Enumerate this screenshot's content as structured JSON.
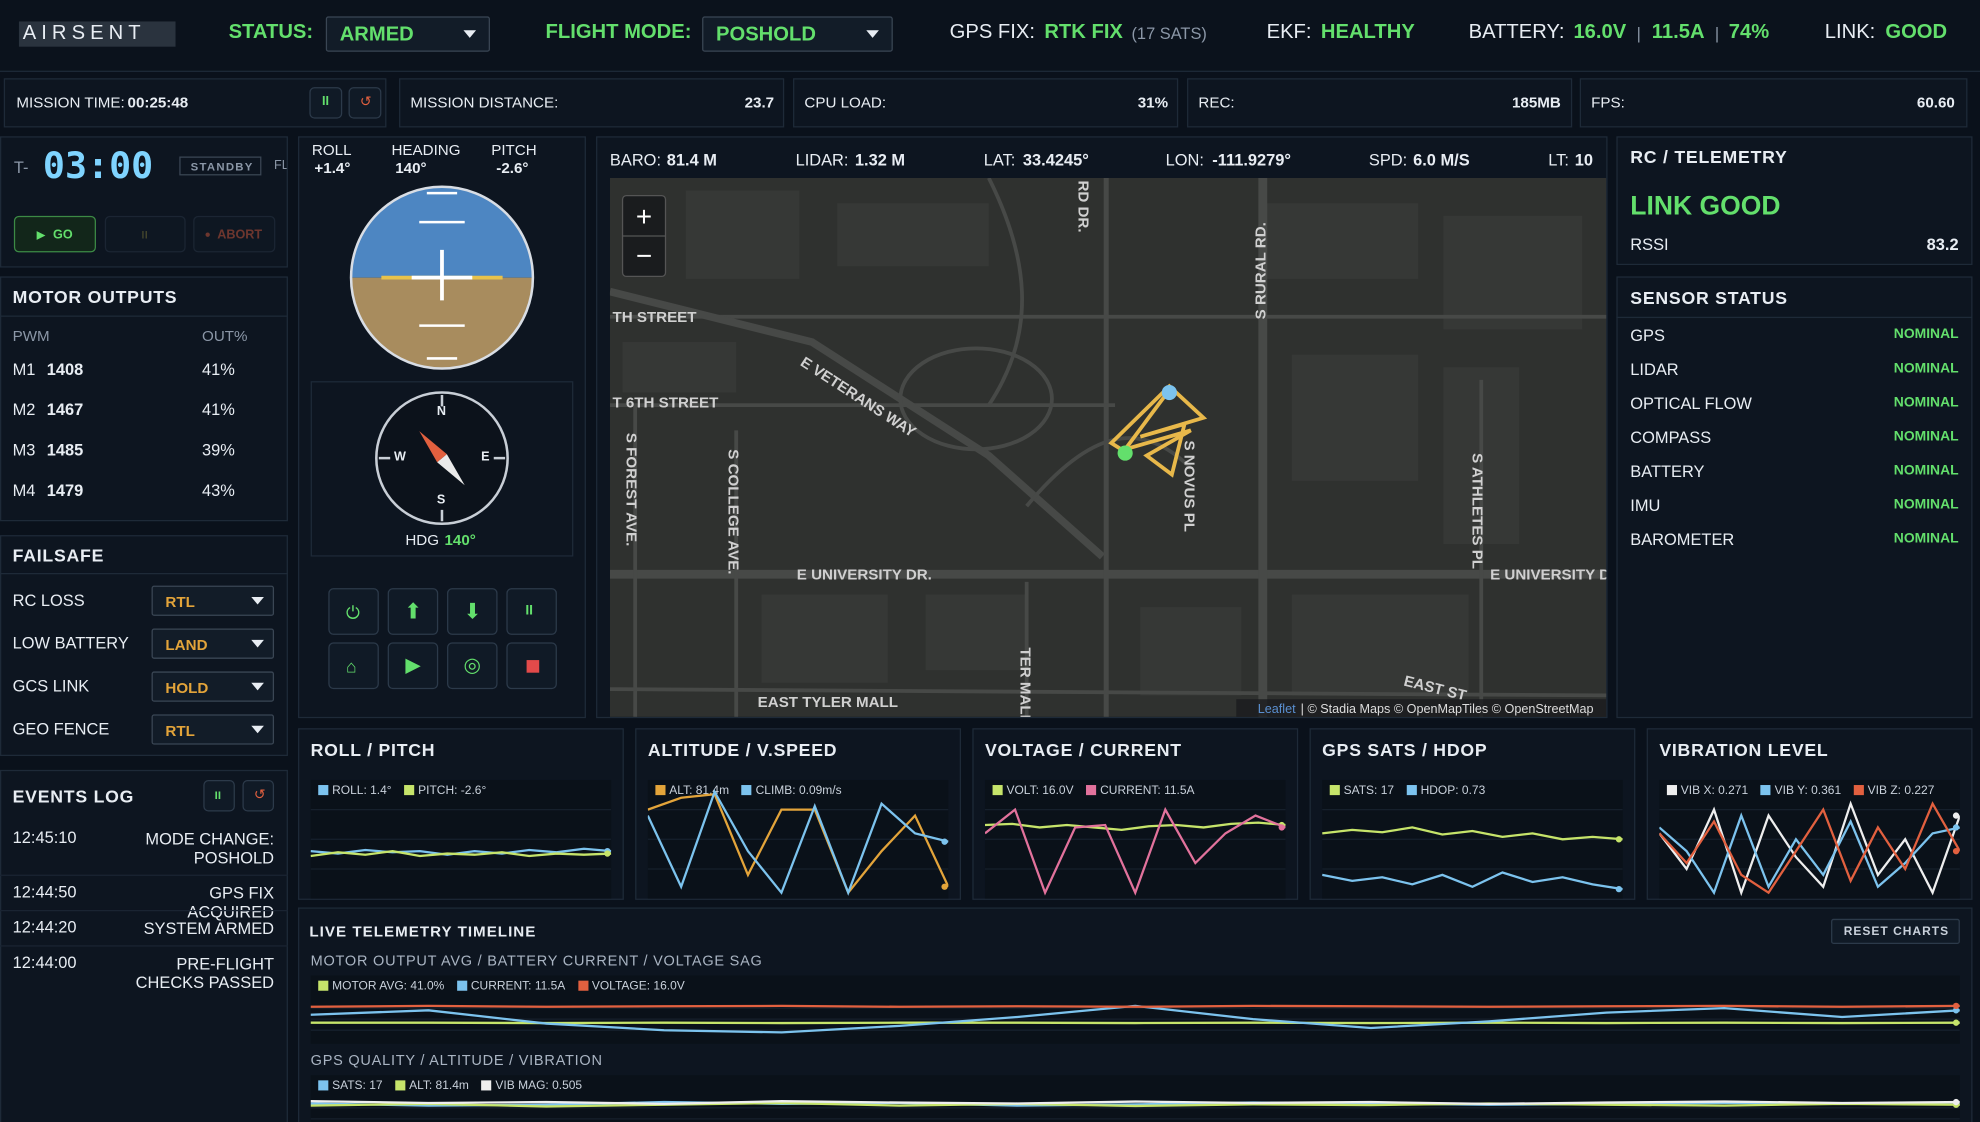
{
  "header": {
    "logo": "AIRSENT",
    "status_label": "STATUS:",
    "status_value": "ARMED",
    "mode_label": "FLIGHT MODE:",
    "mode_value": "POSHOLD",
    "gps_label": "GPS FIX:",
    "gps_value": "RTK FIX",
    "gps_sats": "(17 SATS)",
    "ekf_label": "EKF:",
    "ekf_value": "HEALTHY",
    "battery_label": "BATTERY:",
    "battery_voltage": "16.0V",
    "battery_current": "11.5A",
    "battery_percent": "74%",
    "separator": "|",
    "link_label": "LINK:",
    "link_value": "GOOD"
  },
  "stats_bar": {
    "mission_time_label": "MISSION TIME:",
    "mission_time": "00:25:48",
    "mission_distance_label": "MISSION DISTANCE:",
    "mission_distance": "23.7",
    "cpu_label": "CPU LOAD:",
    "cpu_value": "31%",
    "rec_label": "REC:",
    "rec_value": "185MB",
    "fps_label": "FPS:",
    "fps_value": "60.60"
  },
  "countdown": {
    "prefix": "T-",
    "time": "03:00",
    "state": "STANDBY",
    "cut_label": "FL",
    "go": "GO",
    "abort": "ABORT"
  },
  "motor_outputs": {
    "title": "MOTOR OUTPUTS",
    "col_pwm": "PWM",
    "col_out": "OUT%",
    "rows": [
      [
        "M1",
        "1408",
        "41%"
      ],
      [
        "M2",
        "1467",
        "41%"
      ],
      [
        "M3",
        "1485",
        "39%"
      ],
      [
        "M4",
        "1479",
        "43%"
      ]
    ]
  },
  "failsafe": {
    "title": "FAILSAFE",
    "rows": [
      [
        "RC LOSS",
        "RTL"
      ],
      [
        "LOW BATTERY",
        "LAND"
      ],
      [
        "GCS LINK",
        "HOLD"
      ],
      [
        "GEO FENCE",
        "RTL"
      ]
    ]
  },
  "events_log": {
    "title": "EVENTS LOG",
    "events": [
      [
        "12:45:10",
        "MODE CHANGE: POSHOLD"
      ],
      [
        "12:44:50",
        "GPS FIX ACQUIRED"
      ],
      [
        "12:44:20",
        "SYSTEM ARMED"
      ],
      [
        "12:44:00",
        "PRE-FLIGHT CHECKS PASSED"
      ]
    ]
  },
  "attitude": {
    "roll_label": "ROLL",
    "roll": "+1.4°",
    "heading_label": "HEADING",
    "heading": "140°",
    "pitch_label": "PITCH",
    "pitch": "-2.6°",
    "north": "N",
    "east": "E",
    "south": "S",
    "west": "W",
    "hdg_label": "HDG",
    "hdg_value": "140°"
  },
  "map": {
    "baro_label": "BARO:",
    "baro": "81.4 M",
    "lidar_label": "LIDAR:",
    "lidar": "1.32 M",
    "lat_label": "LAT:",
    "lat": "33.4245°",
    "lon_label": "LON:",
    "lon": "-111.9279°",
    "spd_label": "SPD:",
    "spd": "6.0 M/S",
    "lt_label": "LT:",
    "lt": "10",
    "zoom_in": "+",
    "zoom_out": "−",
    "attribution_link": "Leaflet",
    "attribution": "| © Stadia Maps © OpenMapTiles © OpenStreetMap",
    "labels": [
      "TH STREET",
      "E VETERANS WAY",
      "T 6TH STREET",
      "S FOREST AVE.",
      "S COLLEGE AVE.",
      "E UNIVERSITY DR.",
      "E UNIVERSITY D",
      "EAST TYLER MALL",
      "TER MALL",
      "S NOVUS PL",
      "S RURAL RD.",
      "RD DR.",
      "S ATHLETES PL",
      "EAST ST"
    ]
  },
  "rc_telemetry": {
    "title": "RC / TELEMETRY",
    "link": "LINK GOOD",
    "rssi_label": "RSSI",
    "rssi": "83.2"
  },
  "sensor_status": {
    "title": "SENSOR STATUS",
    "sensors": [
      [
        "GPS",
        "NOMINAL"
      ],
      [
        "LIDAR",
        "NOMINAL"
      ],
      [
        "OPTICAL FLOW",
        "NOMINAL"
      ],
      [
        "COMPASS",
        "NOMINAL"
      ],
      [
        "BATTERY",
        "NOMINAL"
      ],
      [
        "IMU",
        "NOMINAL"
      ],
      [
        "BAROMETER",
        "NOMINAL"
      ]
    ]
  },
  "mini_charts": [
    {
      "type": "line",
      "title": "ROLL / PITCH",
      "ylim": [
        0,
        100
      ],
      "series": [
        {
          "name": "ROLL: 1.4°",
          "color": "#7cc3ee",
          "values": [
            40,
            38,
            41,
            39,
            40,
            37,
            40,
            38,
            41,
            39,
            42,
            40
          ]
        },
        {
          "name": "PITCH: -2.6°",
          "color": "#c6e46a",
          "values": [
            36,
            39,
            37,
            40,
            36,
            38,
            37,
            39,
            36,
            38,
            37,
            38
          ]
        }
      ]
    },
    {
      "type": "line",
      "title": "ALTITUDE / V.SPEED",
      "ylim": [
        0,
        100
      ],
      "series": [
        {
          "name": "ALT: 81.4m",
          "color": "#e3a43a",
          "values": [
            75,
            85,
            88,
            20,
            75,
            75,
            5,
            40,
            70,
            10
          ]
        },
        {
          "name": "CLIMB: 0.09m/s",
          "color": "#7cc3ee",
          "values": [
            70,
            10,
            90,
            40,
            5,
            78,
            5,
            80,
            55,
            48
          ]
        }
      ]
    },
    {
      "type": "line",
      "title": "VOLTAGE / CURRENT",
      "ylim": [
        0,
        100
      ],
      "series": [
        {
          "name": "VOLT: 16.0V",
          "color": "#c6e46a",
          "values": [
            62,
            63,
            60,
            62,
            60,
            58,
            61,
            62,
            60,
            63,
            64,
            62
          ]
        },
        {
          "name": "CURRENT: 11.5A",
          "color": "#e2729c",
          "values": [
            55,
            75,
            5,
            60,
            62,
            5,
            75,
            30,
            55,
            70,
            60
          ]
        }
      ]
    },
    {
      "type": "line",
      "title": "GPS SATS / HDOP",
      "ylim": [
        0,
        100
      ],
      "series": [
        {
          "name": "SATS: 17",
          "color": "#c6e46a",
          "values": [
            55,
            58,
            56,
            60,
            54,
            57,
            52,
            55,
            50,
            52,
            50
          ]
        },
        {
          "name": "HDOP: 0.73",
          "color": "#7cc3ee",
          "values": [
            20,
            15,
            18,
            12,
            20,
            10,
            22,
            14,
            18,
            12,
            8
          ]
        }
      ]
    },
    {
      "type": "line",
      "title": "VIBRATION LEVEL",
      "ylim": [
        0,
        100
      ],
      "series": [
        {
          "name": "VIB X: 0.271",
          "color": "#eeeeee",
          "values": [
            55,
            25,
            75,
            5,
            70,
            35,
            10,
            80,
            20,
            50,
            5,
            70
          ]
        },
        {
          "name": "VIB Y: 0.361",
          "color": "#7cc3ee",
          "values": [
            60,
            40,
            5,
            70,
            10,
            50,
            20,
            65,
            10,
            30,
            55,
            60
          ]
        },
        {
          "name": "VIB Z: 0.227",
          "color": "#e2603f",
          "values": [
            55,
            30,
            65,
            20,
            5,
            40,
            75,
            15,
            60,
            25,
            80,
            40
          ]
        }
      ]
    }
  ],
  "timeline": {
    "title": "LIVE TELEMETRY TIMELINE",
    "reset": "RESET CHARTS",
    "charts": [
      {
        "type": "line",
        "title": "MOTOR OUTPUT AVG / BATTERY CURRENT / VOLTAGE SAG",
        "ylim": [
          0,
          100
        ],
        "series": [
          {
            "name": "MOTOR AVG: 41.0%",
            "color": "#c6e46a",
            "values": [
              42,
              42,
              41,
              42,
              41,
              42,
              42,
              41,
              42,
              41,
              42,
              41,
              42,
              41,
              42
            ]
          },
          {
            "name": "CURRENT: 11.5A",
            "color": "#7cc3ee",
            "values": [
              60,
              70,
              40,
              25,
              20,
              35,
              55,
              80,
              50,
              30,
              45,
              65,
              75,
              55,
              70
            ]
          },
          {
            "name": "VOLTAGE: 16.0V",
            "color": "#e2603f",
            "values": [
              78,
              80,
              78,
              79,
              80,
              78,
              79,
              78,
              80,
              79,
              78,
              79,
              80,
              78,
              80
            ]
          }
        ]
      },
      {
        "type": "line",
        "title": "GPS QUALITY / ALTITUDE / VIBRATION",
        "ylim": [
          0,
          100
        ],
        "series": [
          {
            "name": "SATS: 17",
            "color": "#7cc3ee",
            "values": [
              85,
              80,
              82,
              88,
              84,
              86,
              80,
              83,
              87,
              85,
              82,
              84,
              86,
              85,
              83
            ]
          },
          {
            "name": "ALT: 81.4m",
            "color": "#c6e46a",
            "values": [
              80,
              84,
              78,
              82,
              86,
              80,
              84,
              79,
              83,
              81,
              85,
              82,
              80,
              84,
              82
            ]
          },
          {
            "name": "VIB MAG: 0.505",
            "color": "#eeeeee",
            "values": [
              90,
              86,
              88,
              84,
              90,
              87,
              85,
              89,
              86,
              88,
              84,
              87,
              89,
              86,
              88
            ]
          }
        ]
      }
    ]
  }
}
